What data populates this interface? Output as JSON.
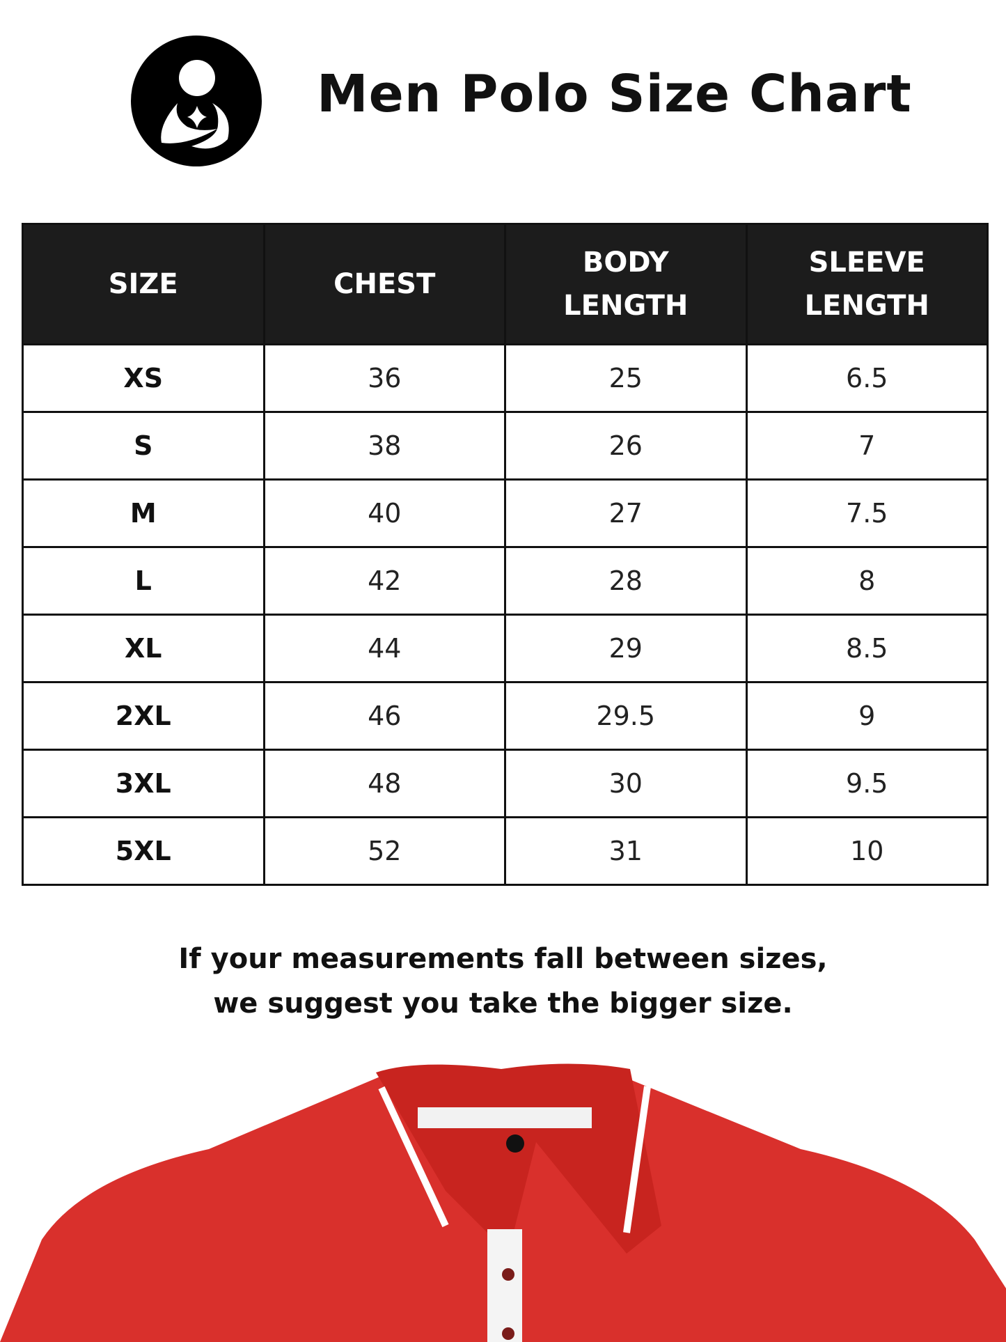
{
  "header": {
    "title": "Men Polo Size Chart",
    "logo_icon": "mother-child-logo"
  },
  "table": {
    "columns": [
      "SIZE",
      "CHEST",
      "BODY LENGTH",
      "SLEEVE LENGTH"
    ],
    "rows": [
      [
        "XS",
        "36",
        "25",
        "6.5"
      ],
      [
        "S",
        "38",
        "26",
        "7"
      ],
      [
        "M",
        "40",
        "27",
        "7.5"
      ],
      [
        "L",
        "42",
        "28",
        "8"
      ],
      [
        "XL",
        "44",
        "29",
        "8.5"
      ],
      [
        "2XL",
        "46",
        "29.5",
        "9"
      ],
      [
        "3XL",
        "48",
        "30",
        "9.5"
      ],
      [
        "5XL",
        "52",
        "31",
        "10"
      ]
    ]
  },
  "note": {
    "line1": "If your measurements fall between sizes,",
    "line2": "we suggest you take the bigger size."
  },
  "colors": {
    "header_bg": "#1c1c1c",
    "shirt_red": "#d9302c",
    "collar_tip": "#ffffff"
  }
}
